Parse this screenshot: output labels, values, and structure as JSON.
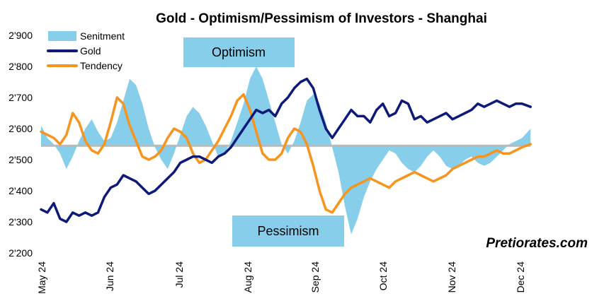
{
  "chart_data": {
    "type": "line",
    "title": "Gold - Optimism/Pessimism of Investors - Shanghai",
    "ylim": [
      2200,
      2900
    ],
    "y_ticks": [
      "2'200",
      "2'300",
      "2'400",
      "2'500",
      "2'600",
      "2'700",
      "2'800",
      "2'900"
    ],
    "y_tick_values": [
      2200,
      2300,
      2400,
      2500,
      2600,
      2700,
      2800,
      2900
    ],
    "x_ticks": [
      "May 24",
      "Jun 24",
      "Jul 24",
      "Aug 24",
      "Sep 24",
      "Oct 24",
      "Nov 24",
      "Dec 24"
    ],
    "sentiment_baseline": 2545,
    "region_labels": {
      "optimism": "Optimism",
      "pessimism": "Pessimism"
    },
    "watermark": "Pretiorates.com",
    "legend": {
      "placement": "top-left",
      "entries": [
        "Senitment",
        "Gold",
        "Tendency"
      ]
    },
    "colors": {
      "sentiment": "#87ceeb",
      "gold": "#0d1a7a",
      "tendency": "#f7941d",
      "region_box": "#87ceeb"
    },
    "series": [
      {
        "name": "Senitment",
        "kind": "area",
        "x": [
          0,
          3,
          6,
          9,
          12,
          15,
          18,
          21,
          24,
          27,
          30,
          33,
          36,
          39,
          42,
          45,
          48,
          51,
          54,
          57,
          60,
          63,
          66,
          69,
          72,
          75,
          78,
          81,
          84,
          87,
          90,
          93,
          96,
          99,
          102,
          105,
          108,
          111,
          114,
          117,
          120,
          123,
          126,
          129,
          132,
          135,
          138,
          141,
          144,
          147,
          150,
          153,
          156,
          159,
          162,
          165,
          168,
          171,
          174,
          177,
          180,
          183,
          186,
          189,
          192,
          195,
          198,
          201,
          204,
          207,
          210,
          213,
          216,
          219,
          222,
          225,
          228,
          232
        ],
        "values": [
          2610,
          2570,
          2550,
          2520,
          2470,
          2510,
          2560,
          2600,
          2630,
          2590,
          2560,
          2570,
          2620,
          2690,
          2760,
          2740,
          2680,
          2600,
          2540,
          2500,
          2470,
          2520,
          2580,
          2640,
          2670,
          2650,
          2610,
          2560,
          2510,
          2520,
          2560,
          2620,
          2680,
          2760,
          2800,
          2760,
          2690,
          2620,
          2550,
          2520,
          2560,
          2620,
          2690,
          2710,
          2680,
          2620,
          2540,
          2460,
          2350,
          2260,
          2310,
          2380,
          2430,
          2470,
          2500,
          2530,
          2520,
          2490,
          2470,
          2460,
          2480,
          2510,
          2530,
          2510,
          2480,
          2470,
          2480,
          2500,
          2510,
          2490,
          2480,
          2490,
          2510,
          2530,
          2550,
          2560,
          2570,
          2600
        ]
      },
      {
        "name": "Gold",
        "kind": "line",
        "x": [
          0,
          3,
          6,
          9,
          12,
          15,
          18,
          21,
          24,
          27,
          30,
          33,
          36,
          39,
          42,
          45,
          48,
          51,
          54,
          57,
          60,
          63,
          66,
          69,
          72,
          75,
          78,
          81,
          84,
          87,
          90,
          93,
          96,
          99,
          102,
          105,
          108,
          111,
          114,
          117,
          120,
          123,
          126,
          129,
          132,
          135,
          138,
          141,
          144,
          147,
          150,
          153,
          156,
          159,
          162,
          165,
          168,
          171,
          174,
          177,
          180,
          183,
          186,
          189,
          192,
          195,
          198,
          201,
          204,
          207,
          210,
          213,
          216,
          219,
          222,
          225,
          228,
          232
        ],
        "values": [
          2340,
          2330,
          2360,
          2310,
          2300,
          2330,
          2320,
          2330,
          2320,
          2330,
          2380,
          2410,
          2420,
          2450,
          2440,
          2430,
          2410,
          2390,
          2400,
          2420,
          2440,
          2460,
          2490,
          2500,
          2510,
          2510,
          2500,
          2490,
          2510,
          2520,
          2540,
          2570,
          2600,
          2630,
          2660,
          2650,
          2660,
          2640,
          2680,
          2700,
          2730,
          2750,
          2760,
          2730,
          2660,
          2600,
          2570,
          2600,
          2630,
          2660,
          2640,
          2640,
          2620,
          2660,
          2680,
          2640,
          2650,
          2690,
          2680,
          2630,
          2640,
          2620,
          2630,
          2640,
          2650,
          2630,
          2640,
          2650,
          2660,
          2680,
          2670,
          2680,
          2690,
          2680,
          2670,
          2680,
          2680,
          2670
        ]
      },
      {
        "name": "Tendency",
        "kind": "line",
        "x": [
          0,
          3,
          6,
          9,
          12,
          15,
          18,
          21,
          24,
          27,
          30,
          33,
          36,
          39,
          42,
          45,
          48,
          51,
          54,
          57,
          60,
          63,
          66,
          69,
          72,
          75,
          78,
          81,
          84,
          87,
          90,
          93,
          96,
          99,
          102,
          105,
          108,
          111,
          114,
          117,
          120,
          123,
          126,
          129,
          132,
          135,
          138,
          141,
          144,
          147,
          150,
          153,
          156,
          159,
          162,
          165,
          168,
          171,
          174,
          177,
          180,
          183,
          186,
          189,
          192,
          195,
          198,
          201,
          204,
          207,
          210,
          213,
          216,
          219,
          222,
          225,
          228,
          232
        ],
        "values": [
          2590,
          2580,
          2570,
          2550,
          2580,
          2650,
          2620,
          2560,
          2530,
          2520,
          2550,
          2620,
          2700,
          2680,
          2610,
          2560,
          2510,
          2500,
          2510,
          2530,
          2570,
          2600,
          2590,
          2570,
          2520,
          2490,
          2500,
          2530,
          2560,
          2600,
          2640,
          2690,
          2710,
          2660,
          2590,
          2520,
          2500,
          2500,
          2520,
          2570,
          2600,
          2590,
          2550,
          2480,
          2400,
          2340,
          2330,
          2360,
          2390,
          2410,
          2420,
          2430,
          2440,
          2430,
          2420,
          2410,
          2430,
          2440,
          2450,
          2460,
          2450,
          2440,
          2430,
          2440,
          2450,
          2470,
          2480,
          2490,
          2500,
          2510,
          2510,
          2520,
          2530,
          2520,
          2520,
          2530,
          2540,
          2550
        ]
      }
    ]
  }
}
